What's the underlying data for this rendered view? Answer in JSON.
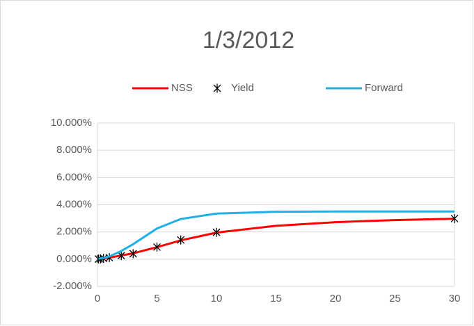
{
  "chart_data": {
    "type": "line",
    "title": "1/3/2012",
    "xlim": [
      0,
      30
    ],
    "xticks": [
      0,
      5,
      10,
      15,
      20,
      25,
      30
    ],
    "ylim": [
      -2,
      10
    ],
    "yticks": [
      {
        "value": -2,
        "label": "-2.000%"
      },
      {
        "value": 0,
        "label": "0.000%"
      },
      {
        "value": 2,
        "label": "2.000%"
      },
      {
        "value": 4,
        "label": "4.000%"
      },
      {
        "value": 6,
        "label": "6.000%"
      },
      {
        "value": 8,
        "label": "8.000%"
      },
      {
        "value": 10,
        "label": "10.000%"
      }
    ],
    "grid": true,
    "legend": "top",
    "series": [
      {
        "name": "NSS",
        "color": "#ff0000",
        "mode": "line",
        "x": [
          0.083,
          0.25,
          0.5,
          1,
          2,
          3,
          5,
          7,
          10,
          15,
          20,
          25,
          30
        ],
        "values": [
          0.02,
          0.03,
          0.06,
          0.12,
          0.27,
          0.43,
          0.88,
          1.38,
          1.95,
          2.45,
          2.72,
          2.87,
          2.97
        ]
      },
      {
        "name": "Yield",
        "color": "#000000",
        "mode": "markers",
        "x": [
          0.083,
          0.25,
          0.5,
          1,
          2,
          3,
          5,
          7,
          10,
          30
        ],
        "values": [
          0.01,
          0.02,
          0.06,
          0.11,
          0.26,
          0.4,
          0.89,
          1.41,
          1.97,
          2.98
        ]
      },
      {
        "name": "Forward",
        "color": "#1fb0e6",
        "mode": "line",
        "x": [
          0.083,
          0.5,
          1,
          2,
          3,
          5,
          7,
          10,
          15,
          20,
          30
        ],
        "values": [
          0.02,
          0.1,
          0.2,
          0.6,
          1.1,
          2.25,
          2.95,
          3.35,
          3.48,
          3.5,
          3.5
        ]
      }
    ]
  }
}
